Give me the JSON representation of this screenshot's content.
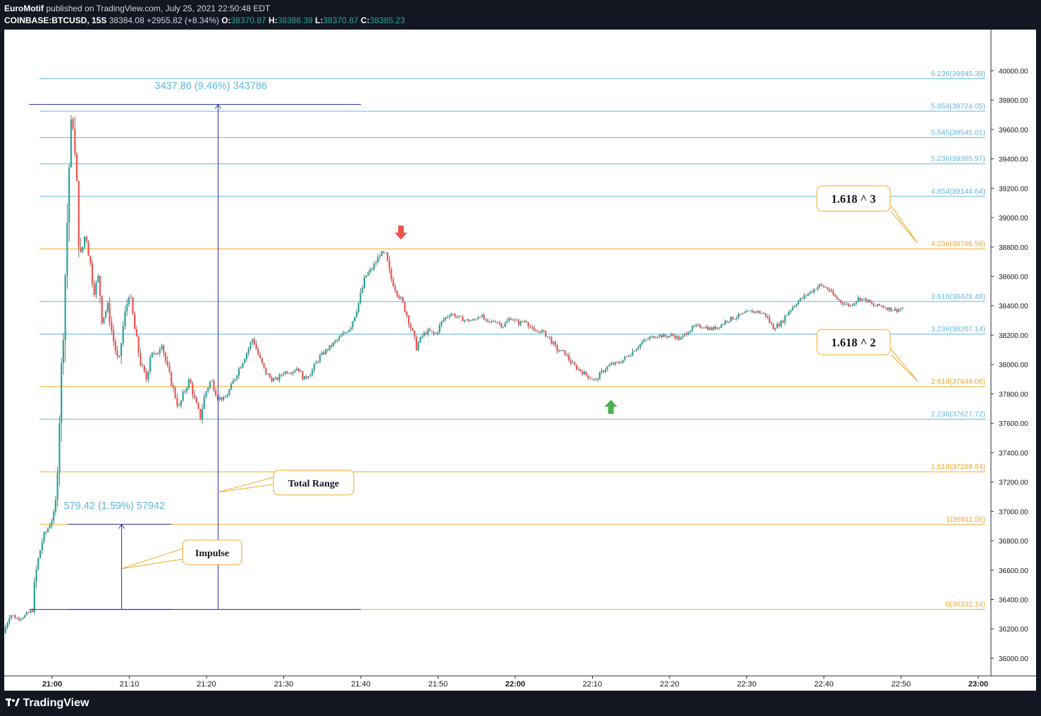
{
  "header": {
    "author": "EuroMotif",
    "published_text": "published on TradingView.com, July 25, 2021 22:50:48 EDT",
    "symbol": "COINBASE:BTCUSD, 15S",
    "last": "38384.08",
    "change": "+2955.82 (+8.34%)",
    "o_label": "O:",
    "o": "38370.87",
    "h_label": "H:",
    "h": "38386.39",
    "l_label": "L:",
    "l": "38370.87",
    "c_label": "C:",
    "c": "38385.23"
  },
  "footer": {
    "logo_text": "TradingView"
  },
  "colors": {
    "up": "#26a69a",
    "down": "#ef5350",
    "fib_blue": "#5fb6e3",
    "fib_orange": "#f5a623",
    "measure": "#2a2eab"
  },
  "chart_data": {
    "type": "candlestick",
    "ylim": [
      35880,
      40280
    ],
    "x_ticks": [
      {
        "label": "21:00",
        "t": 0,
        "bold": true
      },
      {
        "label": "21:10",
        "t": 10
      },
      {
        "label": "21:20",
        "t": 20
      },
      {
        "label": "21:30",
        "t": 30
      },
      {
        "label": "21:40",
        "t": 40
      },
      {
        "label": "21:50",
        "t": 50
      },
      {
        "label": "22:00",
        "t": 60,
        "bold": true
      },
      {
        "label": "22:10",
        "t": 70
      },
      {
        "label": "22:20",
        "t": 80
      },
      {
        "label": "22:30",
        "t": 90
      },
      {
        "label": "22:40",
        "t": 100
      },
      {
        "label": "22:50",
        "t": 110
      },
      {
        "label": "23:00",
        "t": 120,
        "bold": true
      }
    ],
    "y_ticks": [
      "36000.00",
      "36200.00",
      "36400.00",
      "36600.00",
      "36800.00",
      "37000.00",
      "37200.00",
      "37400.00",
      "37600.00",
      "37800.00",
      "38000.00",
      "38200.00",
      "38400.00",
      "38600.00",
      "38800.00",
      "39000.00",
      "39200.00",
      "39400.00",
      "39600.00",
      "39800.00",
      "40000.00"
    ],
    "price_path": [
      [
        -6.3,
        36170
      ],
      [
        -5.5,
        36300
      ],
      [
        -4.5,
        36270
      ],
      [
        -3.5,
        36290
      ],
      [
        -2.5,
        36330
      ],
      [
        -2.2,
        36550
      ],
      [
        -1.7,
        36700
      ],
      [
        -1.2,
        36820
      ],
      [
        -0.6,
        36880
      ],
      [
        0.4,
        37000
      ],
      [
        0.9,
        37600
      ],
      [
        1.4,
        38200
      ],
      [
        1.9,
        38900
      ],
      [
        2.3,
        39500
      ],
      [
        2.6,
        39700
      ],
      [
        3.2,
        39200
      ],
      [
        3.6,
        38700
      ],
      [
        4.3,
        38900
      ],
      [
        4.9,
        38700
      ],
      [
        5.4,
        38500
      ],
      [
        6.0,
        38600
      ],
      [
        6.5,
        38300
      ],
      [
        7.2,
        38400
      ],
      [
        7.8,
        38200
      ],
      [
        8.6,
        38000
      ],
      [
        9.3,
        38300
      ],
      [
        10.0,
        38500
      ],
      [
        10.8,
        38200
      ],
      [
        11.5,
        38000
      ],
      [
        12.2,
        37900
      ],
      [
        12.8,
        38100
      ],
      [
        13.4,
        38050
      ],
      [
        14.2,
        38150
      ],
      [
        14.8,
        38000
      ],
      [
        15.6,
        37850
      ],
      [
        16.4,
        37700
      ],
      [
        17.0,
        37800
      ],
      [
        17.8,
        37900
      ],
      [
        18.5,
        37750
      ],
      [
        19.2,
        37640
      ],
      [
        19.8,
        37800
      ],
      [
        20.6,
        37900
      ],
      [
        21.4,
        37780
      ],
      [
        22.3,
        37760
      ],
      [
        23.2,
        37850
      ],
      [
        24.0,
        37950
      ],
      [
        25.2,
        38080
      ],
      [
        26.0,
        38180
      ],
      [
        26.8,
        38050
      ],
      [
        27.6,
        37950
      ],
      [
        28.4,
        37900
      ],
      [
        29.2,
        37900
      ],
      [
        30.0,
        37950
      ],
      [
        31.0,
        37950
      ],
      [
        31.8,
        37980
      ],
      [
        32.6,
        37900
      ],
      [
        33.6,
        37950
      ],
      [
        34.6,
        38050
      ],
      [
        35.6,
        38100
      ],
      [
        36.6,
        38150
      ],
      [
        37.6,
        38200
      ],
      [
        38.6,
        38250
      ],
      [
        39.6,
        38400
      ],
      [
        40.6,
        38600
      ],
      [
        41.4,
        38650
      ],
      [
        42.0,
        38700
      ],
      [
        42.5,
        38760
      ],
      [
        43.2,
        38750
      ],
      [
        43.8,
        38600
      ],
      [
        44.6,
        38500
      ],
      [
        45.4,
        38420
      ],
      [
        46.2,
        38300
      ],
      [
        47.2,
        38120
      ],
      [
        48.0,
        38200
      ],
      [
        48.8,
        38230
      ],
      [
        49.6,
        38200
      ],
      [
        50.6,
        38300
      ],
      [
        51.6,
        38350
      ],
      [
        52.6,
        38320
      ],
      [
        53.6,
        38300
      ],
      [
        54.6,
        38300
      ],
      [
        55.4,
        38340
      ],
      [
        56.4,
        38280
      ],
      [
        57.4,
        38300
      ],
      [
        58.4,
        38260
      ],
      [
        59.4,
        38320
      ],
      [
        60.4,
        38280
      ],
      [
        61.4,
        38300
      ],
      [
        62.4,
        38220
      ],
      [
        63.4,
        38230
      ],
      [
        64.4,
        38180
      ],
      [
        65.4,
        38100
      ],
      [
        66.4,
        38080
      ],
      [
        67.4,
        38000
      ],
      [
        68.4,
        37960
      ],
      [
        69.4,
        37920
      ],
      [
        70.4,
        37890
      ],
      [
        71.4,
        37960
      ],
      [
        72.4,
        38000
      ],
      [
        73.4,
        38010
      ],
      [
        74.4,
        38050
      ],
      [
        75.4,
        38100
      ],
      [
        76.4,
        38150
      ],
      [
        77.4,
        38180
      ],
      [
        78.4,
        38200
      ],
      [
        79.4,
        38190
      ],
      [
        80.4,
        38200
      ],
      [
        81.4,
        38170
      ],
      [
        82.4,
        38230
      ],
      [
        83.4,
        38260
      ],
      [
        84.4,
        38260
      ],
      [
        85.4,
        38240
      ],
      [
        86.4,
        38260
      ],
      [
        87.4,
        38300
      ],
      [
        88.4,
        38320
      ],
      [
        89.4,
        38340
      ],
      [
        90.4,
        38360
      ],
      [
        91.4,
        38360
      ],
      [
        92.4,
        38340
      ],
      [
        93.4,
        38250
      ],
      [
        94.4,
        38280
      ],
      [
        95.4,
        38360
      ],
      [
        96.4,
        38420
      ],
      [
        97.4,
        38460
      ],
      [
        98.4,
        38500
      ],
      [
        99.4,
        38540
      ],
      [
        100.4,
        38520
      ],
      [
        101.4,
        38460
      ],
      [
        102.4,
        38420
      ],
      [
        103.4,
        38400
      ],
      [
        104.4,
        38450
      ],
      [
        105.4,
        38440
      ],
      [
        106.4,
        38400
      ],
      [
        107.4,
        38400
      ],
      [
        108.4,
        38380
      ],
      [
        109.4,
        38370
      ],
      [
        110.4,
        38385
      ]
    ],
    "fib_levels": [
      {
        "label": "6.236(39945.39)",
        "ratio": 6.236,
        "price": 39945.39,
        "color": "blue"
      },
      {
        "label": "5.854(39724.05)",
        "ratio": 5.854,
        "price": 39724.05,
        "color": "blue"
      },
      {
        "label": "5.545(39545.01)",
        "ratio": 5.545,
        "price": 39545.01,
        "color": "blue"
      },
      {
        "label": "5.236(39365.97)",
        "ratio": 5.236,
        "price": 39365.97,
        "color": "blue"
      },
      {
        "label": "4.854(39144.64)",
        "ratio": 4.854,
        "price": 39144.64,
        "color": "blue"
      },
      {
        "label": "4.236(38786.56)",
        "ratio": 4.236,
        "price": 38786.56,
        "color": "orange"
      },
      {
        "label": "3.618(38428.48)",
        "ratio": 3.618,
        "price": 38428.48,
        "color": "blue"
      },
      {
        "label": "3.236(38207.14)",
        "ratio": 3.236,
        "price": 38207.14,
        "color": "blue"
      },
      {
        "label": "2.618(37849.06)",
        "ratio": 2.618,
        "price": 37849.06,
        "color": "orange"
      },
      {
        "label": "2.236(37627.72)",
        "ratio": 2.236,
        "price": 37627.72,
        "color": "blue"
      },
      {
        "label": "1.618(37269.64)",
        "ratio": 1.618,
        "price": 37269.64,
        "color": "orange"
      },
      {
        "label": "1(36911.56)",
        "ratio": 1,
        "price": 36911.56,
        "color": "orange"
      },
      {
        "label": "0(36332.14)",
        "ratio": 0,
        "price": 36332.14,
        "color": "orange"
      }
    ],
    "measures": [
      {
        "label": "3437.86 (9.46%) 343786",
        "t_start": -3,
        "t_end": 40,
        "t_arrow": 21.5,
        "from": 36332.14,
        "to": 39770
      },
      {
        "label": "579.42 (1.59%) 57942",
        "t_start": 2,
        "t_end": 15.5,
        "t_arrow": 9,
        "from": 36332.14,
        "to": 36911.56
      }
    ],
    "callouts": [
      {
        "text": "1.618 ^ 3",
        "target_price": 38786.56
      },
      {
        "text": "1.618 ^ 2",
        "target_price": 37849.06
      },
      {
        "text": "Total Range",
        "target_price": 37130
      },
      {
        "text": "Impulse",
        "target_price": 36610
      }
    ],
    "markers": [
      {
        "type": "down-arrow",
        "t": 45.2,
        "price": 38850,
        "color": "#ef5350"
      },
      {
        "type": "up-arrow",
        "t": 72.4,
        "price": 37760,
        "color": "#4caf50"
      }
    ]
  }
}
